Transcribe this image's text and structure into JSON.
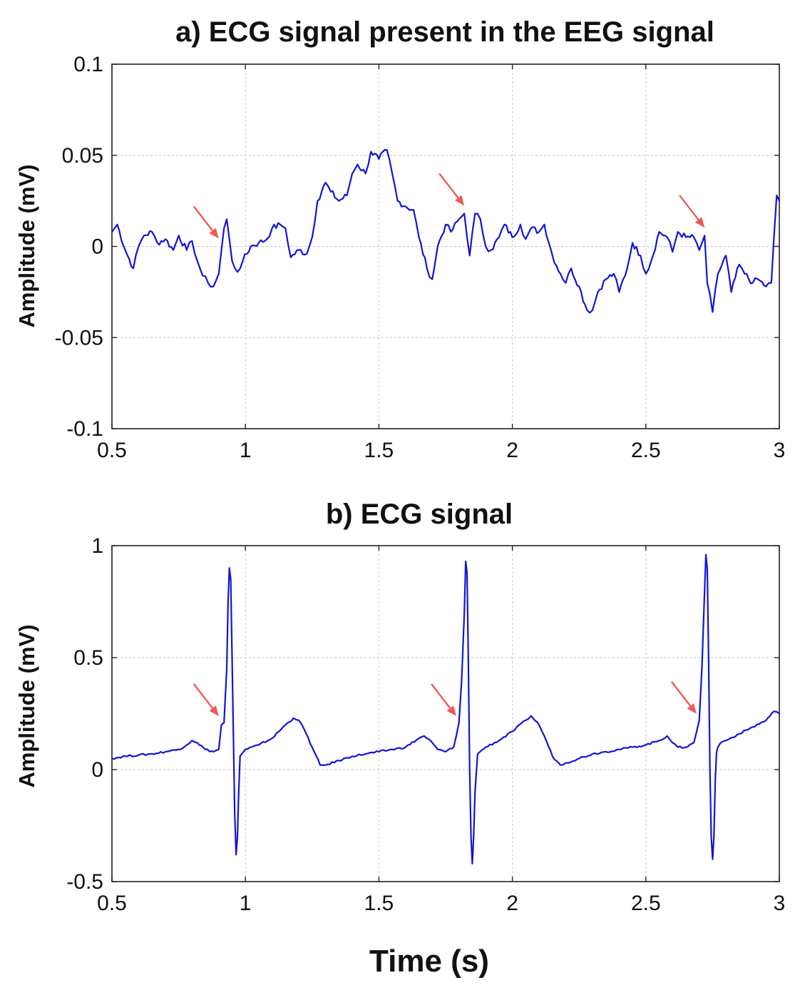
{
  "figure": {
    "xlabel": "Time (s)"
  },
  "colors": {
    "trace": "#1414d2",
    "arrow": "#ee5a5a"
  },
  "chart_data": [
    {
      "type": "line",
      "title": "a) ECG signal present in the EEG signal",
      "xlabel": "",
      "ylabel": "Amplitude (mV)",
      "xlim": [
        0.5,
        3
      ],
      "ylim": [
        -0.1,
        0.1
      ],
      "xticks": [
        0.5,
        1,
        1.5,
        2,
        2.5,
        3
      ],
      "xtick_labels": [
        "0.5",
        "1",
        "1.5",
        "2",
        "2.5",
        "3"
      ],
      "yticks": [
        -0.1,
        -0.05,
        0,
        0.05,
        0.1
      ],
      "ytick_labels": [
        "-0.1",
        "-0.05",
        "0",
        "0.05",
        "0.1"
      ],
      "grid": true,
      "arrows_at": [
        {
          "x": 0.9,
          "y": 0.002
        },
        {
          "x": 1.82,
          "y": 0.02
        },
        {
          "x": 2.72,
          "y": 0.008
        }
      ],
      "series": [
        {
          "x": [
            0.5,
            0.52,
            0.55,
            0.58,
            0.6,
            0.62,
            0.65,
            0.67,
            0.7,
            0.73,
            0.75,
            0.78,
            0.8,
            0.82,
            0.84,
            0.86,
            0.88,
            0.9,
            0.92,
            0.93,
            0.95,
            0.97,
            0.99,
            1.02,
            1.05,
            1.08,
            1.1,
            1.13,
            1.15,
            1.17,
            1.2,
            1.23,
            1.25,
            1.27,
            1.3,
            1.32,
            1.35,
            1.38,
            1.4,
            1.42,
            1.45,
            1.47,
            1.5,
            1.53,
            1.55,
            1.57,
            1.6,
            1.63,
            1.65,
            1.68,
            1.7,
            1.72,
            1.75,
            1.77,
            1.8,
            1.82,
            1.84,
            1.86,
            1.88,
            1.9,
            1.92,
            1.95,
            1.97,
            2.0,
            2.03,
            2.05,
            2.07,
            2.1,
            2.12,
            2.15,
            2.18,
            2.2,
            2.22,
            2.25,
            2.28,
            2.3,
            2.32,
            2.35,
            2.38,
            2.4,
            2.43,
            2.45,
            2.48,
            2.5,
            2.52,
            2.55,
            2.58,
            2.6,
            2.62,
            2.65,
            2.68,
            2.7,
            2.72,
            2.73,
            2.75,
            2.77,
            2.8,
            2.82,
            2.85,
            2.87,
            2.9,
            2.92,
            2.95,
            2.97,
            2.99,
            3.0
          ],
          "y": [
            0.008,
            0.012,
            -0.002,
            -0.012,
            0.0,
            0.006,
            0.008,
            0.002,
            0.004,
            -0.002,
            0.006,
            -0.002,
            0.003,
            -0.008,
            -0.016,
            -0.02,
            -0.022,
            -0.015,
            0.01,
            0.015,
            -0.008,
            -0.014,
            -0.008,
            0.0,
            0.002,
            0.004,
            0.01,
            0.012,
            0.01,
            -0.006,
            -0.002,
            -0.004,
            0.005,
            0.025,
            0.035,
            0.03,
            0.025,
            0.028,
            0.04,
            0.045,
            0.04,
            0.052,
            0.048,
            0.053,
            0.04,
            0.025,
            0.022,
            0.02,
            0.005,
            -0.012,
            -0.018,
            0.0,
            0.012,
            0.008,
            0.015,
            0.018,
            -0.005,
            0.018,
            0.015,
            0.0,
            -0.002,
            0.005,
            0.012,
            0.005,
            0.012,
            0.004,
            0.01,
            0.008,
            0.012,
            -0.005,
            -0.015,
            -0.02,
            -0.012,
            -0.022,
            -0.035,
            -0.035,
            -0.025,
            -0.018,
            -0.015,
            -0.025,
            -0.012,
            0.002,
            -0.005,
            -0.015,
            -0.008,
            0.008,
            0.005,
            -0.003,
            0.008,
            0.005,
            0.005,
            -0.002,
            0.006,
            -0.02,
            -0.036,
            -0.015,
            -0.005,
            -0.025,
            -0.01,
            -0.015,
            -0.02,
            -0.018,
            -0.022,
            -0.02,
            0.028,
            0.025
          ]
        }
      ]
    },
    {
      "type": "line",
      "title": "b) ECG signal",
      "xlabel": "Time (s)",
      "ylabel": "Amplitude (mV)",
      "xlim": [
        0.5,
        3
      ],
      "ylim": [
        -0.5,
        1
      ],
      "xticks": [
        0.5,
        1,
        1.5,
        2,
        2.5,
        3
      ],
      "xtick_labels": [
        "0.5",
        "1",
        "1.5",
        "2",
        "2.5",
        "3"
      ],
      "yticks": [
        -0.5,
        0,
        0.5,
        1
      ],
      "ytick_labels": [
        "-0.5",
        "0",
        "0.5",
        "1"
      ],
      "grid": true,
      "arrows_at": [
        {
          "x": 0.9,
          "y": 0.22
        },
        {
          "x": 1.79,
          "y": 0.22
        },
        {
          "x": 2.69,
          "y": 0.23
        }
      ],
      "series": [
        {
          "x": [
            0.5,
            0.55,
            0.6,
            0.65,
            0.7,
            0.75,
            0.78,
            0.8,
            0.82,
            0.85,
            0.88,
            0.9,
            0.91,
            0.92,
            0.93,
            0.935,
            0.94,
            0.945,
            0.95,
            0.96,
            0.965,
            0.97,
            0.975,
            0.98,
            1.0,
            1.05,
            1.1,
            1.15,
            1.18,
            1.2,
            1.22,
            1.25,
            1.28,
            1.3,
            1.35,
            1.4,
            1.45,
            1.5,
            1.55,
            1.6,
            1.65,
            1.67,
            1.7,
            1.72,
            1.75,
            1.78,
            1.8,
            1.81,
            1.82,
            1.825,
            1.83,
            1.835,
            1.84,
            1.845,
            1.85,
            1.855,
            1.86,
            1.87,
            1.9,
            1.95,
            2.0,
            2.05,
            2.07,
            2.1,
            2.12,
            2.15,
            2.18,
            2.2,
            2.25,
            2.3,
            2.35,
            2.4,
            2.45,
            2.5,
            2.55,
            2.58,
            2.6,
            2.62,
            2.65,
            2.68,
            2.7,
            2.71,
            2.72,
            2.725,
            2.73,
            2.735,
            2.74,
            2.745,
            2.75,
            2.755,
            2.76,
            2.765,
            2.77,
            2.78,
            2.8,
            2.85,
            2.9,
            2.95,
            2.98,
            3.0
          ],
          "y": [
            0.05,
            0.06,
            0.065,
            0.07,
            0.08,
            0.09,
            0.11,
            0.13,
            0.12,
            0.09,
            0.08,
            0.09,
            0.2,
            0.21,
            0.45,
            0.75,
            0.9,
            0.85,
            0.5,
            -0.2,
            -0.38,
            -0.3,
            -0.1,
            0.06,
            0.09,
            0.11,
            0.14,
            0.2,
            0.23,
            0.22,
            0.18,
            0.1,
            0.02,
            0.02,
            0.04,
            0.06,
            0.07,
            0.08,
            0.09,
            0.1,
            0.14,
            0.15,
            0.12,
            0.09,
            0.08,
            0.1,
            0.21,
            0.4,
            0.7,
            0.93,
            0.88,
            0.5,
            0.0,
            -0.3,
            -0.42,
            -0.3,
            -0.1,
            0.07,
            0.1,
            0.13,
            0.17,
            0.22,
            0.24,
            0.2,
            0.15,
            0.06,
            0.02,
            0.03,
            0.05,
            0.07,
            0.08,
            0.09,
            0.1,
            0.11,
            0.13,
            0.15,
            0.12,
            0.1,
            0.1,
            0.12,
            0.22,
            0.45,
            0.8,
            0.96,
            0.9,
            0.5,
            0.0,
            -0.3,
            -0.4,
            -0.3,
            -0.05,
            0.08,
            0.1,
            0.12,
            0.13,
            0.16,
            0.19,
            0.22,
            0.26,
            0.25
          ]
        }
      ]
    }
  ]
}
